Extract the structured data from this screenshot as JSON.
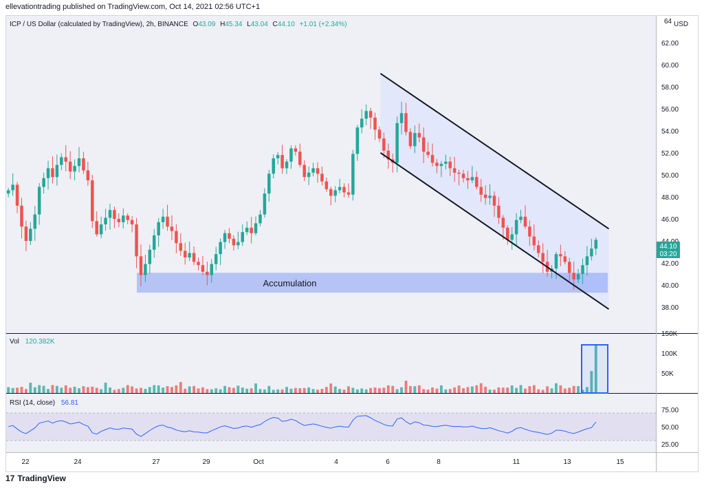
{
  "header": {
    "published_line": "ellevationtrading published on TradingView.com, Oct 14, 2021 02:56 UTC+1"
  },
  "footer": {
    "brand": "TradingView",
    "logo_glyph": "17"
  },
  "symbol_line": {
    "name": "ICP / US Dollar (calculated by TradingView), 2h, BINANCE",
    "o_label": "O",
    "o_value": "43.09",
    "h_label": "H",
    "h_value": "45.34",
    "l_label": "L",
    "l_value": "43.04",
    "c_label": "C",
    "c_value": "44.10",
    "change": "+1.01 (+2.34%)"
  },
  "price_axis": {
    "top_label": "64",
    "currency": "USD",
    "ticks": [
      "62.00",
      "60.00",
      "58.00",
      "56.00",
      "54.00",
      "52.00",
      "50.00",
      "48.00",
      "46.00",
      "44.00",
      "42.00",
      "40.00",
      "38.00"
    ]
  },
  "last_price_tag": {
    "price": "44.10",
    "countdown": "03:20",
    "color": "#26a69a"
  },
  "annotation": {
    "zone_label": "Accumulation",
    "zone_color": "#6f8ff7"
  },
  "volume_pane": {
    "label": "Vol",
    "value": "120.382K",
    "ticks": [
      "150K",
      "100K",
      "50K"
    ]
  },
  "rsi_pane": {
    "label": "RSI (14, close)",
    "value": "56.81",
    "ticks": [
      "75.00",
      "50.00",
      "25.00"
    ],
    "line_color": "#2962ff"
  },
  "time_axis": {
    "ticks": [
      "22",
      "24",
      "27",
      "29",
      "Oct",
      "4",
      "6",
      "8",
      "11",
      "13",
      "15"
    ]
  },
  "colors": {
    "up": "#26a69a",
    "down": "#ef5350",
    "channel": "#131722",
    "channel_fill": "#dfe5fb"
  },
  "chart_data": {
    "type": "candlestick",
    "x_range_days": [
      "2021-09-21",
      "2021-10-15"
    ],
    "y_range": [
      37,
      64
    ],
    "closes_approx": [
      48.6,
      49.1,
      47.2,
      45.3,
      44.0,
      45.1,
      46.4,
      48.9,
      49.7,
      50.6,
      49.8,
      50.9,
      51.6,
      51.2,
      50.3,
      50.8,
      51.5,
      50.4,
      49.5,
      45.8,
      44.6,
      45.5,
      46.1,
      46.8,
      46.0,
      45.7,
      46.3,
      45.9,
      45.5,
      42.6,
      40.9,
      41.9,
      43.2,
      44.5,
      45.7,
      46.2,
      45.3,
      44.9,
      43.8,
      43.1,
      42.5,
      42.9,
      42.1,
      41.8,
      41.2,
      40.9,
      41.9,
      42.8,
      43.9,
      44.7,
      44.2,
      43.6,
      43.9,
      44.8,
      45.2,
      44.7,
      45.6,
      46.4,
      48.3,
      50.1,
      51.5,
      51.8,
      50.6,
      51.2,
      52.4,
      52.1,
      50.9,
      49.8,
      50.2,
      50.6,
      50.1,
      49.4,
      48.7,
      48.1,
      48.6,
      48.9,
      48.4,
      48.2,
      51.9,
      54.3,
      55.1,
      55.8,
      55.2,
      54.1,
      53.3,
      52.2,
      51.4,
      51.1,
      54.7,
      55.6,
      53.9,
      52.6,
      53.8,
      53.4,
      52.1,
      51.8,
      51.1,
      50.8,
      51.0,
      51.2,
      50.6,
      50.2,
      50.1,
      49.7,
      49.5,
      49.8,
      48.9,
      48.2,
      47.9,
      48.1,
      47.2,
      46.1,
      45.2,
      44.1,
      44.6,
      45.9,
      46.2,
      45.3,
      44.4,
      43.6,
      42.9,
      42.1,
      41.2,
      41.5,
      42.8,
      42.6,
      42.1,
      41.1,
      40.5,
      41.0,
      41.8,
      42.6,
      43.3,
      44.1
    ],
    "channel_upper": [
      [
        "2021-10-05",
        59.2
      ],
      [
        "2021-10-14",
        45.1
      ]
    ],
    "channel_lower": [
      [
        "2021-10-05",
        52.0
      ],
      [
        "2021-10-14",
        37.8
      ]
    ],
    "accumulation_zone": {
      "from": "2021-09-26",
      "to": "2021-10-14",
      "price_low": 39.3,
      "price_high": 41.1
    },
    "volume_last_bar": 120382,
    "rsi_last": 56.81,
    "rsi_band": [
      30,
      70
    ]
  }
}
